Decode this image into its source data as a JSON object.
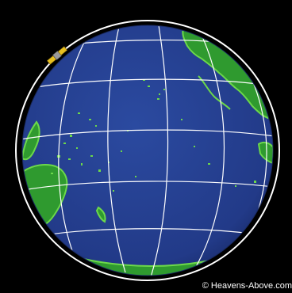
{
  "map": {
    "projection": "orthographic",
    "colors": {
      "background": "#000000",
      "ocean": "#233c8c",
      "land": "#2f9a2f",
      "coast": "#6cd84a",
      "graticule": "#ffffff",
      "orbit": "#ffffff",
      "satellite_panel": "#e8c020",
      "satellite_body": "#9a9a9a"
    },
    "features": [
      "Pacific Ocean",
      "Australia",
      "New Zealand",
      "Asia",
      "North America",
      "Antarctica"
    ],
    "satellite": {
      "icon": "satellite-icon"
    }
  },
  "credit": {
    "text": "© Heavens-Above.com"
  }
}
